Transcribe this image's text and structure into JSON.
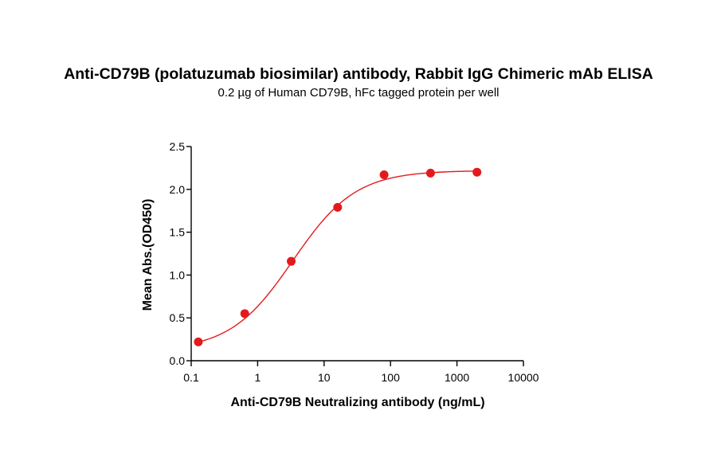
{
  "chart_data": {
    "type": "scatter",
    "title": "Anti-CD79B (polatuzumab biosimilar) antibody, Rabbit IgG Chimeric mAb ELISA",
    "subtitle": "0.2 µg of Human CD79B, hFc tagged protein per well",
    "xlabel": "Anti-CD79B Neutralizing antibody (ng/mL)",
    "ylabel": "Mean Abs.(OD450)",
    "xscale": "log",
    "xlim": [
      0.1,
      10000
    ],
    "ylim": [
      0,
      2.5
    ],
    "x_ticks": [
      "0.1",
      "1",
      "10",
      "100",
      "1000",
      "10000"
    ],
    "y_ticks": [
      "0.0",
      "0.5",
      "1.0",
      "1.5",
      "2.0",
      "2.5"
    ],
    "grid": false,
    "legend": "none",
    "series": [
      {
        "x": [
          0.128,
          0.64,
          3.2,
          16,
          80,
          400,
          2000
        ],
        "y": [
          0.22,
          0.55,
          1.16,
          1.79,
          2.17,
          2.19,
          2.2
        ],
        "fit": "4PL sigmoidal curve",
        "color": "#e31a1c"
      }
    ]
  }
}
